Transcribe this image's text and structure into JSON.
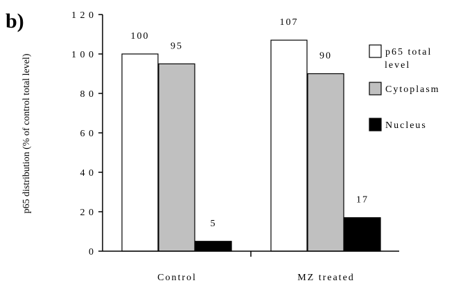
{
  "chart_data": {
    "type": "bar",
    "panel_label": "b)",
    "title": "",
    "xlabel": "",
    "ylabel": "p65 distribution (% of control total level)",
    "categories": [
      "Control",
      "MZ treated"
    ],
    "series": [
      {
        "name": "p65 total level",
        "values": [
          100,
          107
        ],
        "color": "#ffffff"
      },
      {
        "name": "Cytoplasm",
        "values": [
          95,
          90
        ],
        "color": "#c0c0c0"
      },
      {
        "name": "Nucleus",
        "values": [
          5,
          17
        ],
        "color": "#000000"
      }
    ],
    "data_labels": [
      [
        "100",
        "107"
      ],
      [
        "95",
        "90"
      ],
      [
        "5",
        "17"
      ]
    ],
    "ylim": [
      0,
      120
    ],
    "yticks": [
      0,
      20,
      40,
      60,
      80,
      100,
      120
    ],
    "ytick_labels": [
      "0",
      "2 0",
      "4 0",
      "6 0",
      "8 0",
      "1 0 0",
      "1 2 0"
    ],
    "legend_placement": "right",
    "legend_labels": [
      [
        "p65 total",
        "level"
      ],
      [
        "Cytoplasm"
      ],
      [
        "Nucleus"
      ]
    ],
    "grid": false
  }
}
